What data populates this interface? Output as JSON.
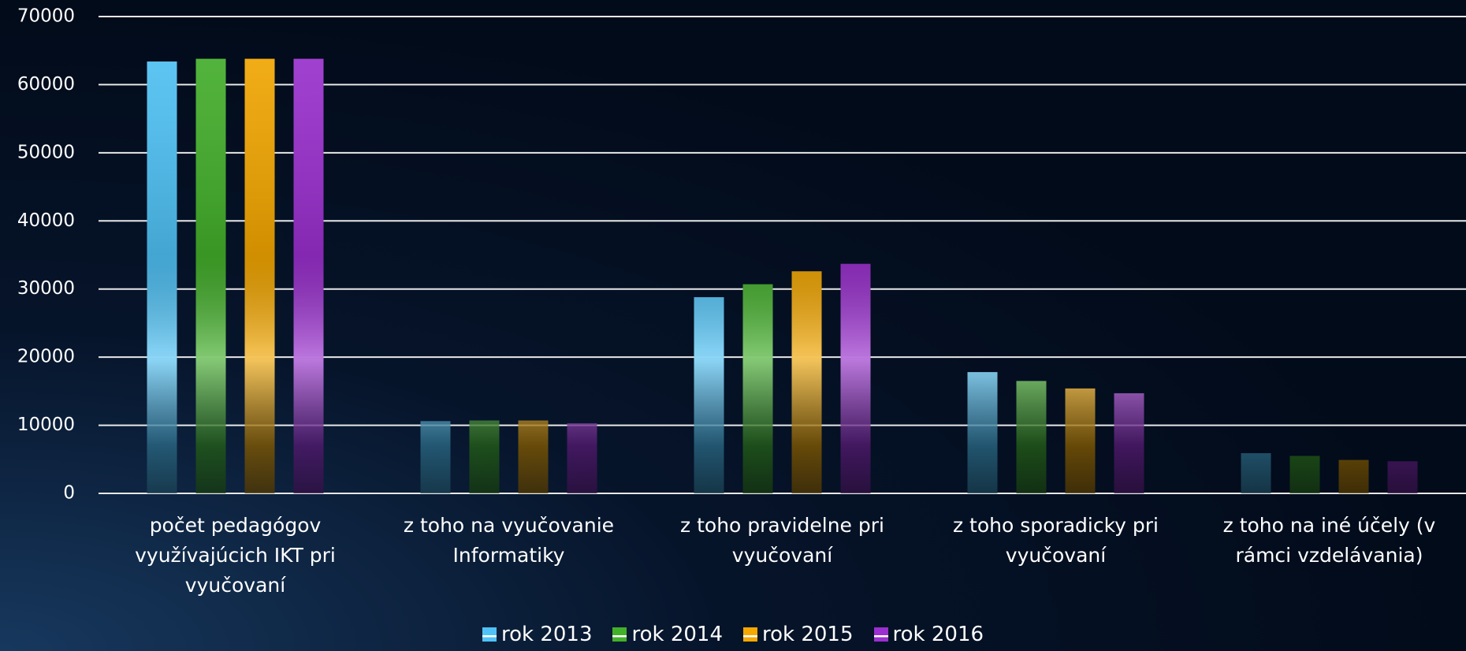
{
  "chart_data": {
    "type": "bar",
    "categories": [
      "počet pedagógov využívajúcich IKT pri vyučovaní",
      "z toho na vyučovanie Informatiky",
      "z toho pravidelne pri vyučovaní",
      "z toho sporadicky pri vyučovaní",
      "z toho na iné účely (v rámci vzdelávania)"
    ],
    "series": [
      {
        "name": "rok 2013",
        "color": "#4fc3f7",
        "values": [
          63400,
          10600,
          28800,
          17800,
          5900
        ]
      },
      {
        "name": "rok 2014",
        "color": "#43b02a",
        "values": [
          63800,
          10700,
          30700,
          16500,
          5500
        ]
      },
      {
        "name": "rok 2015",
        "color": "#f5a800",
        "values": [
          63800,
          10700,
          32600,
          15400,
          4900
        ]
      },
      {
        "name": "rok 2016",
        "color": "#9b2fd0",
        "values": [
          63800,
          10300,
          33700,
          14700,
          4700
        ]
      }
    ],
    "ylim": [
      0,
      70000
    ],
    "yticks": [
      0,
      10000,
      20000,
      30000,
      40000,
      50000,
      60000,
      70000
    ],
    "grid": true,
    "legend": "bottom"
  }
}
